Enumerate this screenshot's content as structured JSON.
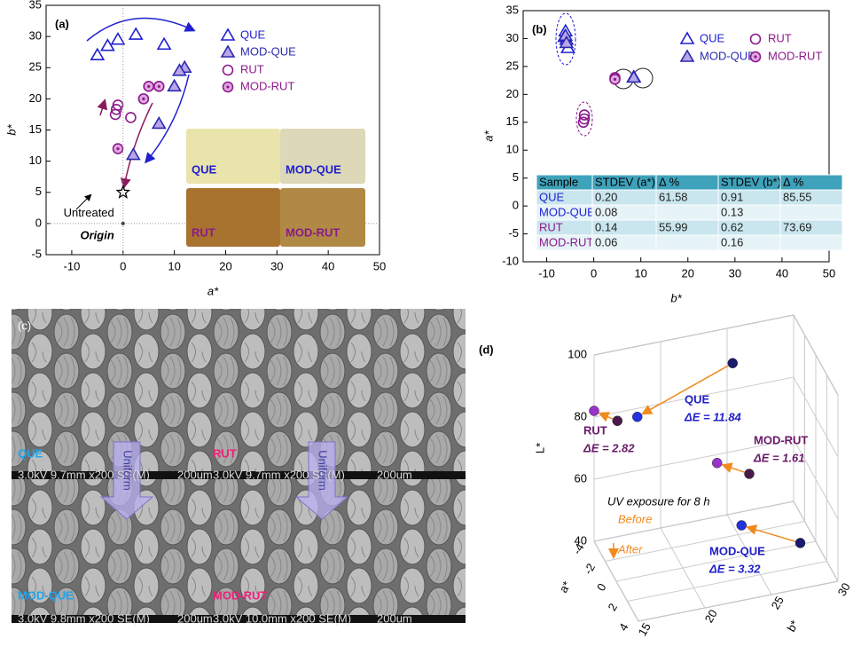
{
  "chart_data": [
    {
      "type": "scatter",
      "label": "(a)",
      "xlabel": "a*",
      "ylabel": "b*",
      "xlim": [
        -15,
        50
      ],
      "ylim": [
        -5,
        35
      ],
      "xticks": [
        -10,
        0,
        10,
        20,
        30,
        40,
        50
      ],
      "yticks": [
        -5,
        0,
        5,
        10,
        15,
        20,
        25,
        30,
        35
      ],
      "series": [
        {
          "name": "QUE",
          "marker": "triangle",
          "color": "#2020d0",
          "fill": "none",
          "x": [
            -5,
            -3,
            -1,
            2.5,
            8
          ],
          "values": [
            27,
            28.5,
            29.5,
            30.3,
            28.7
          ]
        },
        {
          "name": "MOD-QUE",
          "marker": "triangle",
          "color": "#2a2ab0",
          "fill": "#b9a6e6",
          "x": [
            12,
            11,
            10,
            7,
            2
          ],
          "values": [
            25,
            24.5,
            22,
            16,
            11
          ]
        },
        {
          "name": "RUT",
          "marker": "circle",
          "color": "#8b1a8b",
          "fill": "none",
          "x": [
            -1.5,
            -1.3,
            -1,
            1.5
          ],
          "values": [
            17.5,
            18.3,
            19,
            17
          ]
        },
        {
          "name": "MOD-RUT",
          "marker": "circle-dot",
          "color": "#8b1a8b",
          "fill": "#e0a8e0",
          "x": [
            -1,
            4,
            5,
            7
          ],
          "values": [
            12,
            20,
            22,
            22
          ]
        }
      ],
      "annotations": [
        {
          "text": "Untreated",
          "x": 0,
          "y": 5,
          "marker": "star"
        },
        {
          "text": "Origin",
          "x": 0,
          "y": 0,
          "marker": "dot"
        }
      ],
      "swatches": [
        {
          "label": "QUE",
          "color": "#e9e4ab"
        },
        {
          "label": "MOD-QUE",
          "color": "#dcd8b8"
        },
        {
          "label": "RUT",
          "color": "#a8722f"
        },
        {
          "label": "MOD-RUT",
          "color": "#b08a45"
        }
      ]
    },
    {
      "type": "scatter",
      "label": "(b)",
      "xlabel": "b*",
      "ylabel": "a*",
      "xlim": [
        -15,
        50
      ],
      "ylim": [
        -10,
        35
      ],
      "xticks": [
        -10,
        0,
        10,
        20,
        30,
        40,
        50
      ],
      "yticks": [
        -10,
        -5,
        0,
        5,
        10,
        15,
        20,
        25,
        30,
        35
      ],
      "series": [
        {
          "name": "QUE",
          "marker": "triangle",
          "color": "#2020d0",
          "fill": "none",
          "x": [
            -6,
            -6.2,
            -5.8,
            -5.5,
            8.5
          ],
          "values": [
            31.3,
            30.3,
            29.8,
            28.3,
            23.1
          ]
        },
        {
          "name": "MOD-QUE",
          "marker": "triangle",
          "color": "#2a2ab0",
          "fill": "#b9a6e6",
          "x": [
            -6,
            -5.8,
            8.5
          ],
          "values": [
            30.5,
            29.2,
            23
          ]
        },
        {
          "name": "RUT",
          "marker": "circle",
          "color": "#8b1a8b",
          "fill": "none",
          "x": [
            -2,
            -2,
            -2.2
          ],
          "values": [
            16.3,
            15.6,
            15
          ]
        },
        {
          "name": "MOD-RUT",
          "marker": "circle-dot",
          "color": "#8b1a8b",
          "fill": "#e0a8e0",
          "x": [
            4.5,
            4.5
          ],
          "values": [
            23,
            22.7
          ]
        }
      ],
      "table": {
        "header": [
          "Sample",
          "STDEV (a*)",
          "Δ %",
          "STDEV (b*)",
          "Δ %"
        ],
        "rows": [
          {
            "sample": "QUE",
            "stdev_a": "0.20",
            "delta_a": "61.58",
            "stdev_b": "0.91",
            "delta_b": "85.55"
          },
          {
            "sample": "MOD-QUE",
            "stdev_a": "0.08",
            "stdev_b": "0.13"
          },
          {
            "sample": "RUT",
            "stdev_a": "0.14",
            "delta_a": "55.99",
            "stdev_b": "0.62",
            "delta_b": "73.69"
          },
          {
            "sample": "MOD-RUT",
            "stdev_a": "0.06",
            "stdev_b": "0.16"
          }
        ]
      }
    },
    {
      "type": "image",
      "label": "(c)",
      "arrow_text": "Uniform",
      "panels": [
        {
          "label": "QUE",
          "color": "#1ea6f0",
          "scale": "3.0kV 9.7mm x200 SE(M)",
          "bar": "200um"
        },
        {
          "label": "RUT",
          "color": "#f0207a",
          "scale": "3.0kV 9.7mm x200 SE(M)",
          "bar": "200um"
        },
        {
          "label": "MOD-QUE",
          "color": "#1ea6f0",
          "scale": "3.0kV 9.8mm x200 SE(M)",
          "bar": "200um"
        },
        {
          "label": "MOD-RUT",
          "color": "#f0207a",
          "scale": "3.0kV 10.0mm x200 SE(M)",
          "bar": "200um"
        }
      ]
    },
    {
      "type": "scatter3d",
      "label": "(d)",
      "xlabel": "a*",
      "ylabel": "b*",
      "zlabel": "L*",
      "xlim": [
        -4,
        4
      ],
      "ylim": [
        15,
        30
      ],
      "zlim": [
        40,
        100
      ],
      "xticks": [
        -4,
        -2,
        0,
        2,
        4
      ],
      "yticks": [
        15,
        20,
        25,
        30
      ],
      "zticks": [
        40,
        60,
        80,
        100
      ],
      "groups": [
        {
          "name": "QUE",
          "color": "#2020c8",
          "before": {
            "a": -3,
            "b": 25,
            "L": 92,
            "color": "#1a1a6e"
          },
          "after": {
            "a": -1,
            "b": 17,
            "L": 88,
            "color": "#2233dd"
          },
          "delta_e": 11.84,
          "delta_e_label": "ΔE = 11.84"
        },
        {
          "name": "RUT",
          "color": "#6a1a6a",
          "before": {
            "a": -1,
            "b": 15.5,
            "L": 88,
            "color": "#4a1a4a"
          },
          "after": {
            "a": -4,
            "b": 15,
            "L": 82,
            "color": "#9933cc"
          },
          "delta_e": 2.82,
          "delta_e_label": "ΔE = 2.82"
        },
        {
          "name": "MOD-RUT",
          "color": "#6a1a6a",
          "before": {
            "a": 0,
            "b": 25,
            "L": 66,
            "color": "#4a1a4a"
          },
          "after": {
            "a": -1,
            "b": 23,
            "L": 68,
            "color": "#9933cc"
          },
          "delta_e": 1.61,
          "delta_e_label": "ΔE = 1.61"
        },
        {
          "name": "MOD-QUE",
          "color": "#2020c8",
          "before": {
            "a": 2,
            "b": 28,
            "L": 47.6,
            "color": "#1a1a6e"
          },
          "after": {
            "a": 1,
            "b": 24,
            "L": 53.5,
            "color": "#2233dd"
          },
          "delta_e": 3.32,
          "delta_e_label": "ΔE = 3.32"
        }
      ],
      "note": "UV exposure for 8 h",
      "before_label": "Before",
      "after_label": "After"
    }
  ]
}
